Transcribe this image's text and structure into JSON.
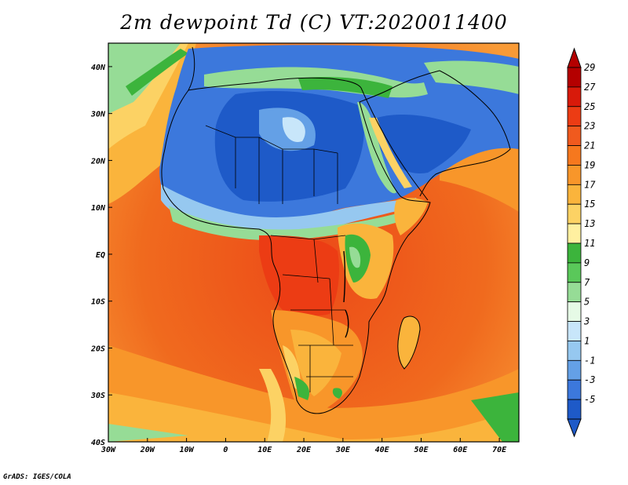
{
  "title": "2m dewpoint Td (C) VT:2020011400",
  "credit": "GrADS: IGES/COLA",
  "map": {
    "lon_ticks": [
      "30W",
      "20W",
      "10W",
      "0",
      "10E",
      "20E",
      "30E",
      "40E",
      "50E",
      "60E",
      "70E"
    ],
    "lat_ticks": [
      "40N",
      "30N",
      "20N",
      "10N",
      "EQ",
      "10S",
      "20S",
      "30S",
      "40S"
    ],
    "lon_range": [
      -30,
      75
    ],
    "lat_range": [
      -40,
      45
    ]
  },
  "colorbar": {
    "levels": [
      "29",
      "27",
      "25",
      "23",
      "21",
      "19",
      "17",
      "15",
      "13",
      "11",
      "9",
      "7",
      "5",
      "3",
      "1",
      "-1",
      "-3",
      "-5"
    ],
    "colors": [
      "#b40000",
      "#d81a0a",
      "#ec3c14",
      "#f05a1e",
      "#f6781e",
      "#f8962a",
      "#fab43c",
      "#fcd264",
      "#fff0a0",
      "#3cb43c",
      "#5ac85a",
      "#96dc96",
      "#e6fae6",
      "#c8e6fa",
      "#96c8f0",
      "#64a0e6",
      "#3c78dc",
      "#1e5ac8"
    ]
  }
}
